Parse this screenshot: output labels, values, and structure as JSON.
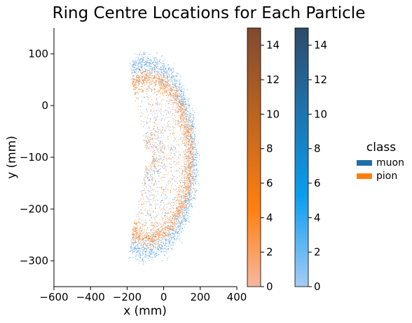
{
  "chart_data": {
    "type": "scatter",
    "title": "Ring Centre Locations for Each Particle",
    "xlabel": "x (mm)",
    "ylabel": "y (mm)",
    "xlim": [
      -600,
      400
    ],
    "ylim": [
      -350,
      150
    ],
    "xticks": [
      -600,
      -400,
      -200,
      0,
      200,
      400
    ],
    "yticks": [
      100,
      0,
      -100,
      -200,
      -300
    ],
    "grid": false,
    "series": [
      {
        "name": "muon",
        "color": "#1f77b4",
        "ring": {
          "center": [
            -90,
            -100
          ],
          "outer_radius_x": 290,
          "outer_radius_y": 200,
          "peak_x": 190
        }
      },
      {
        "name": "pion",
        "color": "#ff7f0e",
        "ring": {
          "center": [
            -90,
            -100
          ],
          "outer_radius_x": 270,
          "outer_radius_y": 170,
          "peak_x": 170
        }
      }
    ],
    "colorbars": [
      {
        "name": "pion",
        "range": [
          0,
          15
        ],
        "ticks": [
          0,
          2,
          4,
          6,
          8,
          10,
          12,
          14
        ],
        "color_low": "#f6b8a0",
        "color_mid": "#ff7f0e",
        "color_high": "#7f4a30"
      },
      {
        "name": "muon",
        "range": [
          0,
          15
        ],
        "ticks": [
          0,
          2,
          4,
          6,
          8,
          10,
          12,
          14
        ],
        "color_low": "#a6cbf5",
        "color_mid": "#0a9ef0",
        "color_high": "#2f4a6a"
      }
    ],
    "legend": {
      "title": "class",
      "placement": "right",
      "entries": [
        {
          "label": "muon",
          "color": "#1f6fa8"
        },
        {
          "label": "pion",
          "color": "#ff7f0e"
        }
      ]
    }
  }
}
